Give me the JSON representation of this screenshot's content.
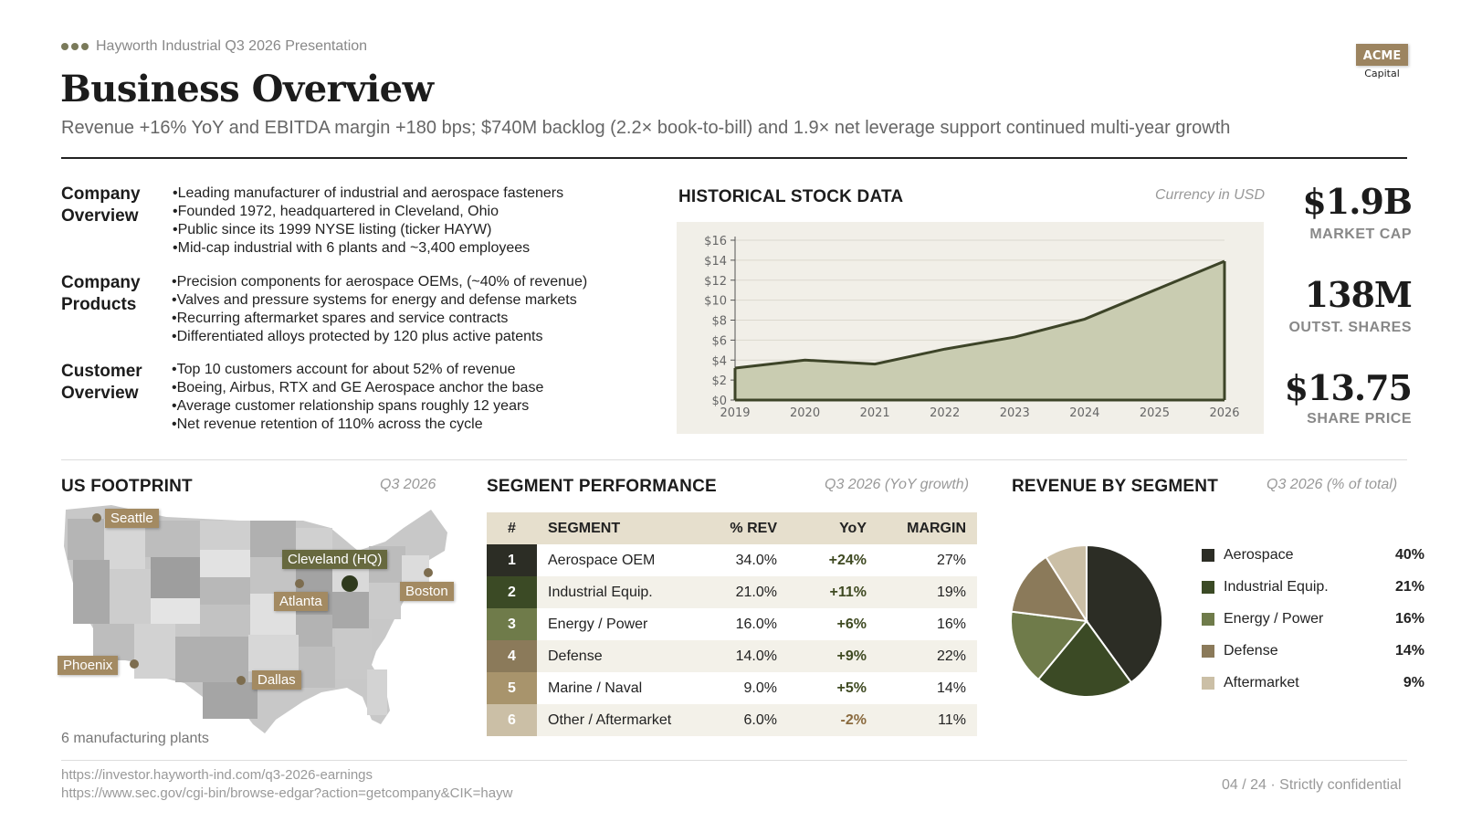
{
  "header": {
    "topline": "Hayworth Industrial Q3 2026 Presentation",
    "title": "Business Overview",
    "subtitle": "Revenue +16% YoY and EBITDA margin +180 bps; $740M backlog (2.2× book-to-bill) and 1.9× net leverage support continued multi-year growth",
    "logo_main": "ACME",
    "logo_sub": "Capital"
  },
  "overview": [
    {
      "heading_line1": "Company",
      "heading_line2": "Overview",
      "bullets": [
        "Leading manufacturer of industrial and aerospace fasteners",
        "Founded 1972, headquartered in Cleveland, Ohio",
        "Public since its 1999 NYSE listing (ticker HAYW)",
        "Mid-cap industrial with 6 plants and ~3,400 employees"
      ]
    },
    {
      "heading_line1": "Company",
      "heading_line2": "Products",
      "bullets": [
        "Precision components for aerospace OEMs, (~40% of revenue)",
        "Valves and pressure systems for energy and defense markets",
        "Recurring aftermarket spares and service contracts",
        "Differentiated alloys protected by 120 plus active patents"
      ]
    },
    {
      "heading_line1": "Customer",
      "heading_line2": "Overview",
      "bullets": [
        "Top 10 customers account for about 52% of revenue",
        "Boeing, Airbus, RTX and GE Aerospace anchor the base",
        "Average customer relationship spans roughly 12 years",
        "Net revenue retention of 110% across the cycle"
      ]
    }
  ],
  "stock": {
    "title": "HISTORICAL STOCK DATA",
    "note": "Currency in USD"
  },
  "chart_data": {
    "type": "area",
    "x": [
      "2019",
      "2020",
      "2021",
      "2022",
      "2023",
      "2024",
      "2025",
      "2026"
    ],
    "values": [
      3.2,
      4.0,
      3.6,
      5.1,
      6.3,
      8.1,
      11.0,
      13.9
    ],
    "yticks": [
      "$0",
      "$2",
      "$4",
      "$6",
      "$8",
      "$10",
      "$12",
      "$14",
      "$16"
    ],
    "ylim": [
      0,
      16
    ],
    "grid": true,
    "fill": "#c9ccb1",
    "line": "#3d4428"
  },
  "kpis": [
    {
      "value": "$1.9B",
      "label": "MARKET CAP"
    },
    {
      "value": "138M",
      "label": "OUTST. SHARES"
    },
    {
      "value": "$13.75",
      "label": "SHARE PRICE"
    }
  ],
  "footprint": {
    "title": "US FOOTPRINT",
    "note": "Q3 2026",
    "caption": "6 manufacturing plants",
    "pins": [
      "Seattle",
      "Cleveland (HQ)",
      "Atlanta",
      "Boston",
      "Phoenix",
      "Dallas"
    ]
  },
  "segments": {
    "title": "SEGMENT PERFORMANCE",
    "note": "Q3 2026 (YoY growth)",
    "columns": [
      "#",
      "SEGMENT",
      "% REV",
      "YoY",
      "MARGIN"
    ],
    "rows": [
      {
        "num": "1",
        "segment": "Aerospace OEM",
        "rev": "34.0%",
        "yoy": "+24%",
        "margin": "27%",
        "color": "#2c2d25",
        "yoy_color": "#3f4a22"
      },
      {
        "num": "2",
        "segment": "Industrial Equip.",
        "rev": "21.0%",
        "yoy": "+11%",
        "margin": "19%",
        "color": "#3b4a25",
        "yoy_color": "#3f4a22"
      },
      {
        "num": "3",
        "segment": "Energy / Power",
        "rev": "16.0%",
        "yoy": "+6%",
        "margin": "16%",
        "color": "#6f7b4a",
        "yoy_color": "#3f4a22"
      },
      {
        "num": "4",
        "segment": "Defense",
        "rev": "14.0%",
        "yoy": "+9%",
        "margin": "22%",
        "color": "#8b7a5a",
        "yoy_color": "#3f4a22"
      },
      {
        "num": "5",
        "segment": "Marine / Naval",
        "rev": "9.0%",
        "yoy": "+5%",
        "margin": "14%",
        "color": "#a8946c",
        "yoy_color": "#3f4a22"
      },
      {
        "num": "6",
        "segment": "Other / Aftermarket",
        "rev": "6.0%",
        "yoy": "-2%",
        "margin": "11%",
        "color": "#cbbfa6",
        "yoy_color": "#8a6a3e"
      }
    ]
  },
  "revenue": {
    "title": "REVENUE BY SEGMENT",
    "note": "Q3 2026 (% of total)",
    "pie": [
      {
        "name": "Aerospace",
        "value": 40,
        "label": "40%",
        "color": "#2c2d25"
      },
      {
        "name": "Industrial Equip.",
        "value": 21,
        "label": "21%",
        "color": "#3b4a25"
      },
      {
        "name": "Energy / Power",
        "value": 16,
        "label": "16%",
        "color": "#6f7b4a"
      },
      {
        "name": "Defense",
        "value": 14,
        "label": "14%",
        "color": "#8b7a5a"
      },
      {
        "name": "Aftermarket",
        "value": 9,
        "label": "9%",
        "color": "#cbbfa6"
      }
    ]
  },
  "footer": {
    "link1": "https://investor.hayworth-ind.com/q3-2026-earnings",
    "link2": "https://www.sec.gov/cgi-bin/browse-edgar?action=getcompany&CIK=hayw",
    "page": "04 / 24 · Strictly confidential"
  }
}
